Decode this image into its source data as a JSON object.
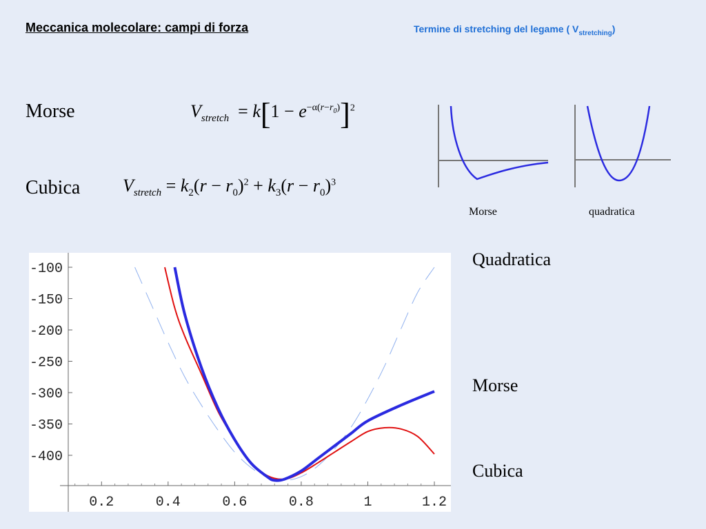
{
  "header": {
    "title": "Meccanica molecolare: campi di forza",
    "subtitle_main": "Termine di stretching del legame  ( V",
    "subtitle_sub": "stretching",
    "subtitle_end": ")"
  },
  "formulas": {
    "morse_label": "Morse",
    "cubic_label": "Cubica"
  },
  "thumbnails": {
    "morse_label": "Morse",
    "quadratic_label": "quadratica"
  },
  "legend": {
    "quadratic": "Quadratica",
    "morse": "Morse",
    "cubic": "Cubica"
  },
  "colors": {
    "title_blue": "#1f6fd6",
    "morse_curve": "#2a2ae0",
    "cubic_curve": "#e01010",
    "quadratic_curve": "#8fb0ee"
  },
  "chart_data": {
    "type": "line",
    "xlim": [
      0.1,
      1.2
    ],
    "ylim": [
      -450,
      -90
    ],
    "x_ticks": [
      "0.2",
      "0.4",
      "0.6",
      "0.8",
      "1",
      "1.2"
    ],
    "y_ticks": [
      "-100",
      "-150",
      "-200",
      "-250",
      "-300",
      "-350",
      "-400"
    ],
    "series": [
      {
        "name": "Morse",
        "x": [
          0.42,
          0.45,
          0.5,
          0.55,
          0.6,
          0.65,
          0.7,
          0.72,
          0.75,
          0.8,
          0.85,
          0.9,
          0.95,
          1.0,
          1.1,
          1.2
        ],
        "y": [
          -100,
          -175,
          -260,
          -325,
          -375,
          -413,
          -435,
          -440,
          -438,
          -425,
          -405,
          -385,
          -365,
          -345,
          -320,
          -298
        ]
      },
      {
        "name": "Cubica",
        "x": [
          0.39,
          0.42,
          0.45,
          0.5,
          0.55,
          0.6,
          0.65,
          0.7,
          0.75,
          0.8,
          0.85,
          0.9,
          0.95,
          1.0,
          1.05,
          1.1,
          1.15,
          1.2
        ],
        "y": [
          -100,
          -165,
          -210,
          -270,
          -330,
          -375,
          -412,
          -433,
          -438,
          -428,
          -412,
          -395,
          -378,
          -362,
          -356,
          -358,
          -370,
          -398
        ]
      },
      {
        "name": "Quadratica",
        "x": [
          0.3,
          0.35,
          0.4,
          0.45,
          0.5,
          0.55,
          0.6,
          0.65,
          0.7,
          0.75,
          0.8,
          0.85,
          0.9,
          0.95,
          1.0,
          1.05,
          1.1,
          1.15,
          1.2
        ],
        "y": [
          -100,
          -160,
          -220,
          -275,
          -320,
          -360,
          -395,
          -420,
          -435,
          -440,
          -434,
          -417,
          -390,
          -355,
          -310,
          -258,
          -198,
          -140,
          -100
        ]
      }
    ]
  }
}
